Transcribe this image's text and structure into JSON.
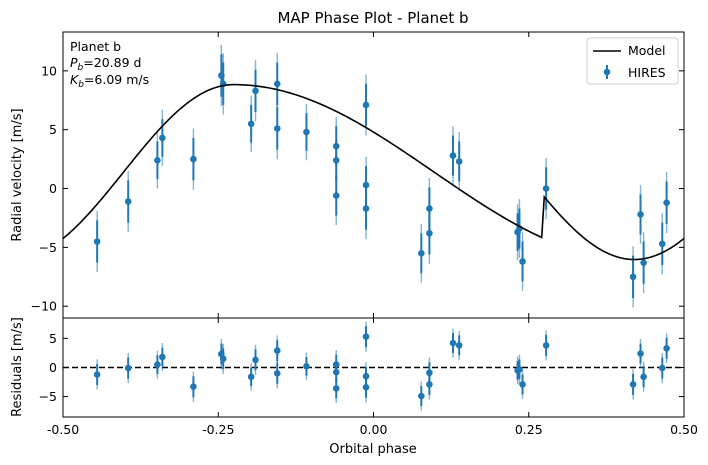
{
  "chart_data": {
    "type": "scatter",
    "title": "MAP Phase Plot - Planet b",
    "xlabel": "Orbital phase",
    "xlim": [
      -0.5,
      0.5
    ],
    "xticks": [
      "-0.50",
      "-0.25",
      "0.00",
      "0.25",
      "0.50"
    ],
    "xtick_values": [
      -0.5,
      -0.25,
      0.0,
      0.25,
      0.5
    ],
    "colors": {
      "data": "#1f77b4",
      "errorbar": "#1f77b4",
      "model": "#000000",
      "residual_line": "#000000"
    },
    "annotation": {
      "line1": "Planet b",
      "line2_symbol": "P",
      "line2_sub": "b",
      "line2_value": "=20.89 d",
      "line3_symbol": "K",
      "line3_sub": "b",
      "line3_value": "=6.09 m/s"
    },
    "legend": {
      "placement": "top-right",
      "model_label": "Model",
      "data_label": "HIRES"
    },
    "rv_panel": {
      "ylabel": "Radial velocity [m/s]",
      "ylim": [
        -11,
        13.3
      ],
      "yticks": [
        "−10",
        "−5",
        "0",
        "5",
        "10"
      ],
      "ytick_values": [
        -10,
        -5,
        0,
        5,
        10
      ],
      "model_semi_amplitude": 6.09,
      "model_phase_of_peak": -0.225,
      "model_phase_of_min": 0.42,
      "points": [
        {
          "x": -0.445,
          "y": -4.5,
          "err": 1.8,
          "jit": 2.6
        },
        {
          "x": -0.395,
          "y": -1.1,
          "err": 1.8,
          "jit": 2.6
        },
        {
          "x": -0.348,
          "y": 2.4,
          "err": 1.6,
          "jit": 2.4
        },
        {
          "x": -0.34,
          "y": 4.3,
          "err": 1.6,
          "jit": 2.4
        },
        {
          "x": -0.29,
          "y": 2.5,
          "err": 1.8,
          "jit": 2.6
        },
        {
          "x": -0.245,
          "y": 9.6,
          "err": 1.8,
          "jit": 2.6
        },
        {
          "x": -0.242,
          "y": 8.9,
          "err": 1.8,
          "jit": 2.6
        },
        {
          "x": -0.197,
          "y": 5.5,
          "err": 1.6,
          "jit": 2.4
        },
        {
          "x": -0.19,
          "y": 8.3,
          "err": 1.8,
          "jit": 2.6
        },
        {
          "x": -0.155,
          "y": 8.9,
          "err": 1.8,
          "jit": 2.6
        },
        {
          "x": -0.155,
          "y": 5.1,
          "err": 1.8,
          "jit": 2.6
        },
        {
          "x": -0.108,
          "y": 4.8,
          "err": 1.6,
          "jit": 2.4
        },
        {
          "x": -0.06,
          "y": 3.6,
          "err": 1.7,
          "jit": 2.5
        },
        {
          "x": -0.06,
          "y": 2.4,
          "err": 1.7,
          "jit": 2.5
        },
        {
          "x": -0.06,
          "y": -0.6,
          "err": 1.7,
          "jit": 2.5
        },
        {
          "x": -0.012,
          "y": 7.1,
          "err": 1.8,
          "jit": 2.6
        },
        {
          "x": -0.012,
          "y": 0.3,
          "err": 1.6,
          "jit": 2.4
        },
        {
          "x": -0.012,
          "y": -1.7,
          "err": 1.8,
          "jit": 2.6
        },
        {
          "x": 0.077,
          "y": -5.5,
          "err": 1.7,
          "jit": 2.5
        },
        {
          "x": 0.09,
          "y": -1.7,
          "err": 1.8,
          "jit": 2.6
        },
        {
          "x": 0.09,
          "y": -3.8,
          "err": 1.8,
          "jit": 2.6
        },
        {
          "x": 0.128,
          "y": 2.8,
          "err": 1.7,
          "jit": 2.5
        },
        {
          "x": 0.138,
          "y": 2.3,
          "err": 1.7,
          "jit": 2.5
        },
        {
          "x": 0.232,
          "y": -3.7,
          "err": 1.6,
          "jit": 2.4
        },
        {
          "x": 0.235,
          "y": -3.4,
          "err": 1.7,
          "jit": 2.5
        },
        {
          "x": 0.24,
          "y": -6.2,
          "err": 1.7,
          "jit": 2.5
        },
        {
          "x": 0.278,
          "y": 0.0,
          "err": 1.8,
          "jit": 2.6
        },
        {
          "x": 0.418,
          "y": -7.5,
          "err": 1.8,
          "jit": 2.6
        },
        {
          "x": 0.43,
          "y": -2.2,
          "err": 1.7,
          "jit": 2.5
        },
        {
          "x": 0.435,
          "y": -6.3,
          "err": 1.8,
          "jit": 2.6
        },
        {
          "x": 0.465,
          "y": -4.7,
          "err": 1.8,
          "jit": 2.6
        },
        {
          "x": 0.472,
          "y": -1.2,
          "err": 1.8,
          "jit": 2.6
        }
      ]
    },
    "residual_panel": {
      "ylabel": "Residuals [m/s]",
      "ylim": [
        -8.5,
        8.5
      ],
      "yticks": [
        "−5",
        "0",
        "5"
      ],
      "ytick_values": [
        -5,
        0,
        5
      ],
      "points": [
        {
          "x": -0.445,
          "y": -1.2,
          "err": 1.8,
          "jit": 2.6
        },
        {
          "x": -0.395,
          "y": -0.1,
          "err": 1.8,
          "jit": 2.6
        },
        {
          "x": -0.348,
          "y": 0.5,
          "err": 1.6,
          "jit": 2.4
        },
        {
          "x": -0.34,
          "y": 1.8,
          "err": 1.6,
          "jit": 2.4
        },
        {
          "x": -0.29,
          "y": -3.3,
          "err": 1.8,
          "jit": 2.6
        },
        {
          "x": -0.245,
          "y": 2.3,
          "err": 1.8,
          "jit": 2.6
        },
        {
          "x": -0.242,
          "y": 1.5,
          "err": 1.8,
          "jit": 2.6
        },
        {
          "x": -0.197,
          "y": -1.6,
          "err": 1.6,
          "jit": 2.4
        },
        {
          "x": -0.19,
          "y": 1.3,
          "err": 1.8,
          "jit": 2.6
        },
        {
          "x": -0.155,
          "y": 2.9,
          "err": 1.8,
          "jit": 2.6
        },
        {
          "x": -0.155,
          "y": -1.0,
          "err": 1.8,
          "jit": 2.6
        },
        {
          "x": -0.108,
          "y": 0.2,
          "err": 1.6,
          "jit": 2.4
        },
        {
          "x": -0.06,
          "y": 0.5,
          "err": 1.7,
          "jit": 2.5
        },
        {
          "x": -0.06,
          "y": -0.8,
          "err": 1.7,
          "jit": 2.5
        },
        {
          "x": -0.06,
          "y": -3.6,
          "err": 1.7,
          "jit": 2.5
        },
        {
          "x": -0.012,
          "y": 5.3,
          "err": 1.8,
          "jit": 2.6
        },
        {
          "x": -0.012,
          "y": -1.5,
          "err": 1.6,
          "jit": 2.4
        },
        {
          "x": -0.012,
          "y": -3.4,
          "err": 1.8,
          "jit": 2.6
        },
        {
          "x": 0.077,
          "y": -4.9,
          "err": 1.7,
          "jit": 2.5
        },
        {
          "x": 0.09,
          "y": -0.9,
          "err": 1.8,
          "jit": 2.6
        },
        {
          "x": 0.09,
          "y": -2.9,
          "err": 1.8,
          "jit": 2.6
        },
        {
          "x": 0.128,
          "y": 4.2,
          "err": 1.7,
          "jit": 2.5
        },
        {
          "x": 0.138,
          "y": 3.8,
          "err": 1.7,
          "jit": 2.5
        },
        {
          "x": 0.232,
          "y": -0.5,
          "err": 1.6,
          "jit": 2.4
        },
        {
          "x": 0.235,
          "y": -0.3,
          "err": 1.7,
          "jit": 2.5
        },
        {
          "x": 0.24,
          "y": -2.9,
          "err": 1.7,
          "jit": 2.5
        },
        {
          "x": 0.278,
          "y": 3.8,
          "err": 1.8,
          "jit": 2.6
        },
        {
          "x": 0.418,
          "y": -2.9,
          "err": 1.8,
          "jit": 2.6
        },
        {
          "x": 0.43,
          "y": 2.4,
          "err": 1.7,
          "jit": 2.5
        },
        {
          "x": 0.435,
          "y": -1.6,
          "err": 1.8,
          "jit": 2.6
        },
        {
          "x": 0.465,
          "y": -0.1,
          "err": 1.8,
          "jit": 2.6
        },
        {
          "x": 0.472,
          "y": 3.3,
          "err": 1.8,
          "jit": 2.6
        }
      ]
    }
  }
}
